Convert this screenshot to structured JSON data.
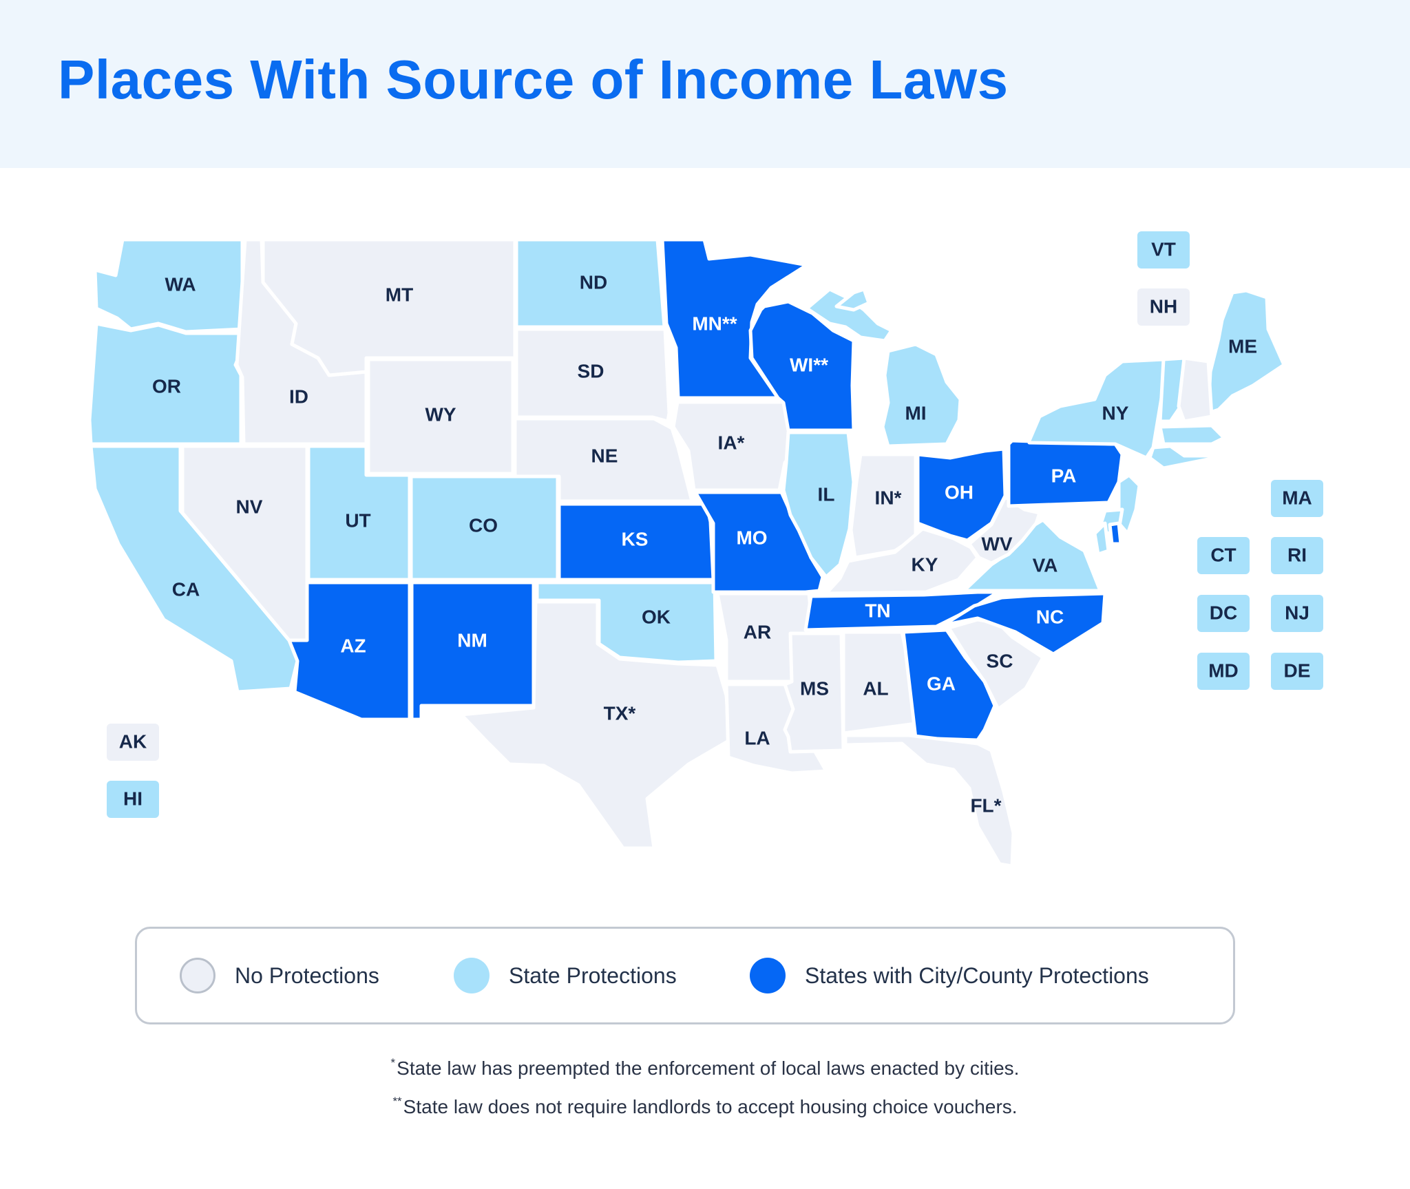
{
  "title": "Places With Source of Income Laws",
  "colors": {
    "none": "#edf0f7",
    "state": "#a8e1fb",
    "city": "#0567f5",
    "text_dark": "#16284a",
    "text_light": "#ffffff",
    "title": "#0a6cf0"
  },
  "states": [
    {
      "abbr": "WA",
      "status": "state"
    },
    {
      "abbr": "OR",
      "status": "state"
    },
    {
      "abbr": "CA",
      "status": "state"
    },
    {
      "abbr": "ID",
      "status": "none"
    },
    {
      "abbr": "NV",
      "status": "none"
    },
    {
      "abbr": "MT",
      "status": "none"
    },
    {
      "abbr": "WY",
      "status": "none"
    },
    {
      "abbr": "UT",
      "status": "state"
    },
    {
      "abbr": "AZ",
      "status": "city"
    },
    {
      "abbr": "CO",
      "status": "state"
    },
    {
      "abbr": "NM",
      "status": "city"
    },
    {
      "abbr": "ND",
      "status": "state"
    },
    {
      "abbr": "SD",
      "status": "none"
    },
    {
      "abbr": "NE",
      "status": "none"
    },
    {
      "abbr": "KS",
      "status": "city"
    },
    {
      "abbr": "OK",
      "status": "state"
    },
    {
      "abbr": "TX",
      "label": "TX*",
      "status": "none"
    },
    {
      "abbr": "MN",
      "label": "MN**",
      "status": "city"
    },
    {
      "abbr": "IA",
      "label": "IA*",
      "status": "none"
    },
    {
      "abbr": "MO",
      "status": "city"
    },
    {
      "abbr": "AR",
      "status": "none"
    },
    {
      "abbr": "LA",
      "status": "none"
    },
    {
      "abbr": "WI",
      "label": "WI**",
      "status": "city"
    },
    {
      "abbr": "IL",
      "status": "state"
    },
    {
      "abbr": "MI",
      "status": "state"
    },
    {
      "abbr": "IN",
      "label": "IN*",
      "status": "none"
    },
    {
      "abbr": "OH",
      "status": "city"
    },
    {
      "abbr": "KY",
      "status": "none"
    },
    {
      "abbr": "TN",
      "status": "city"
    },
    {
      "abbr": "MS",
      "status": "none"
    },
    {
      "abbr": "AL",
      "status": "none"
    },
    {
      "abbr": "GA",
      "status": "city"
    },
    {
      "abbr": "FL",
      "label": "FL*",
      "status": "none"
    },
    {
      "abbr": "SC",
      "status": "none"
    },
    {
      "abbr": "NC",
      "status": "city"
    },
    {
      "abbr": "VA",
      "status": "state"
    },
    {
      "abbr": "WV",
      "status": "none"
    },
    {
      "abbr": "PA",
      "status": "city"
    },
    {
      "abbr": "NY",
      "status": "state"
    },
    {
      "abbr": "ME",
      "status": "state"
    }
  ],
  "boxes": [
    {
      "abbr": "VT",
      "status": "state"
    },
    {
      "abbr": "NH",
      "status": "none"
    },
    {
      "abbr": "MA",
      "status": "state"
    },
    {
      "abbr": "CT",
      "status": "state"
    },
    {
      "abbr": "RI",
      "status": "state"
    },
    {
      "abbr": "DC",
      "status": "state"
    },
    {
      "abbr": "NJ",
      "status": "state"
    },
    {
      "abbr": "MD",
      "status": "state"
    },
    {
      "abbr": "DE",
      "status": "state"
    },
    {
      "abbr": "AK",
      "status": "none"
    },
    {
      "abbr": "HI",
      "status": "state"
    }
  ],
  "legend": {
    "none": "No Protections",
    "state": "State Protections",
    "city": "States with City/County Protections"
  },
  "footnotes": {
    "star_mark": "*",
    "star": "State law has preempted the enforcement of local laws enacted by cities.",
    "double_star_mark": "**",
    "double_star": "State law does not require landlords to accept housing choice vouchers."
  }
}
